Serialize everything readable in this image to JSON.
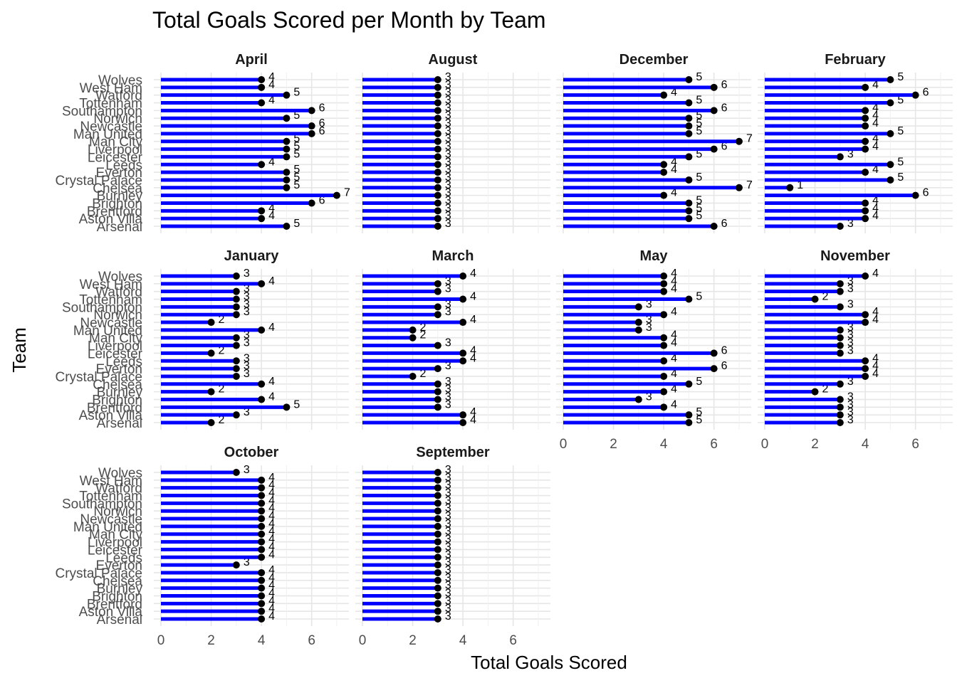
{
  "chart_data": {
    "type": "bar",
    "title": "Total Goals Scored per Month by Team",
    "xlabel": "Total Goals Scored",
    "ylabel": "Team",
    "xlim": [
      0,
      7.2
    ],
    "xticks": [
      0,
      2,
      4,
      6
    ],
    "teams": [
      "Arsenal",
      "Aston Villa",
      "Brentford",
      "Brighton",
      "Burnley",
      "Chelsea",
      "Crystal Palace",
      "Everton",
      "Leeds",
      "Leicester",
      "Liverpool",
      "Man City",
      "Man United",
      "Newcastle",
      "Norwich",
      "Southampton",
      "Tottenham",
      "Watford",
      "West Ham",
      "Wolves"
    ],
    "ytick_labels": [
      "Arsenal",
      "Aston Villa",
      "Brentford",
      "Brighton",
      "Burnley",
      "Chelsea",
      "Crystal Palace",
      "Everton",
      "Leeds",
      "Leicester",
      "Liverpool",
      "Man City",
      "Man United",
      "Newcastle",
      "Norwich",
      "Southampton",
      "Tottenham",
      "Watford",
      "West Ham",
      "Wolves"
    ],
    "xtick_labels": [
      "0",
      "2",
      "4",
      "6"
    ],
    "panels": [
      {
        "month": "April",
        "values": [
          5,
          4,
          4,
          6,
          7,
          5,
          5,
          5,
          4,
          5,
          5,
          5,
          6,
          6,
          5,
          6,
          4,
          5,
          4,
          4
        ]
      },
      {
        "month": "August",
        "values": [
          3,
          3,
          3,
          3,
          3,
          3,
          3,
          3,
          3,
          3,
          3,
          3,
          3,
          3,
          3,
          3,
          3,
          3,
          3,
          3
        ]
      },
      {
        "month": "December",
        "values": [
          6,
          5,
          5,
          5,
          4,
          7,
          5,
          4,
          4,
          5,
          6,
          7,
          5,
          5,
          5,
          6,
          5,
          4,
          6,
          5
        ]
      },
      {
        "month": "February",
        "values": [
          3,
          4,
          4,
          4,
          6,
          1,
          5,
          4,
          5,
          3,
          4,
          4,
          5,
          4,
          4,
          4,
          5,
          6,
          4,
          5
        ]
      },
      {
        "month": "January",
        "values": [
          2,
          3,
          5,
          4,
          2,
          4,
          3,
          3,
          3,
          2,
          3,
          3,
          4,
          2,
          3,
          3,
          3,
          3,
          4,
          3
        ]
      },
      {
        "month": "March",
        "values": [
          4,
          4,
          3,
          3,
          3,
          3,
          2,
          3,
          4,
          4,
          3,
          2,
          2,
          4,
          3,
          3,
          4,
          3,
          3,
          4
        ]
      },
      {
        "month": "May",
        "values": [
          5,
          5,
          4,
          3,
          4,
          5,
          4,
          6,
          4,
          6,
          4,
          4,
          3,
          3,
          4,
          3,
          5,
          4,
          4,
          4
        ]
      },
      {
        "month": "November",
        "values": [
          3,
          3,
          3,
          3,
          2,
          3,
          4,
          4,
          4,
          3,
          3,
          3,
          3,
          4,
          4,
          3,
          2,
          3,
          3,
          4
        ]
      },
      {
        "month": "October",
        "values": [
          4,
          4,
          4,
          4,
          4,
          4,
          4,
          3,
          4,
          4,
          4,
          4,
          4,
          4,
          4,
          4,
          4,
          4,
          4,
          3
        ]
      },
      {
        "month": "September",
        "values": [
          3,
          3,
          3,
          3,
          3,
          3,
          3,
          3,
          3,
          3,
          3,
          3,
          3,
          3,
          3,
          3,
          3,
          3,
          3,
          3
        ]
      }
    ],
    "series_color": "#0000ff",
    "point_color": "#000000",
    "grid": true,
    "legend": "none"
  }
}
